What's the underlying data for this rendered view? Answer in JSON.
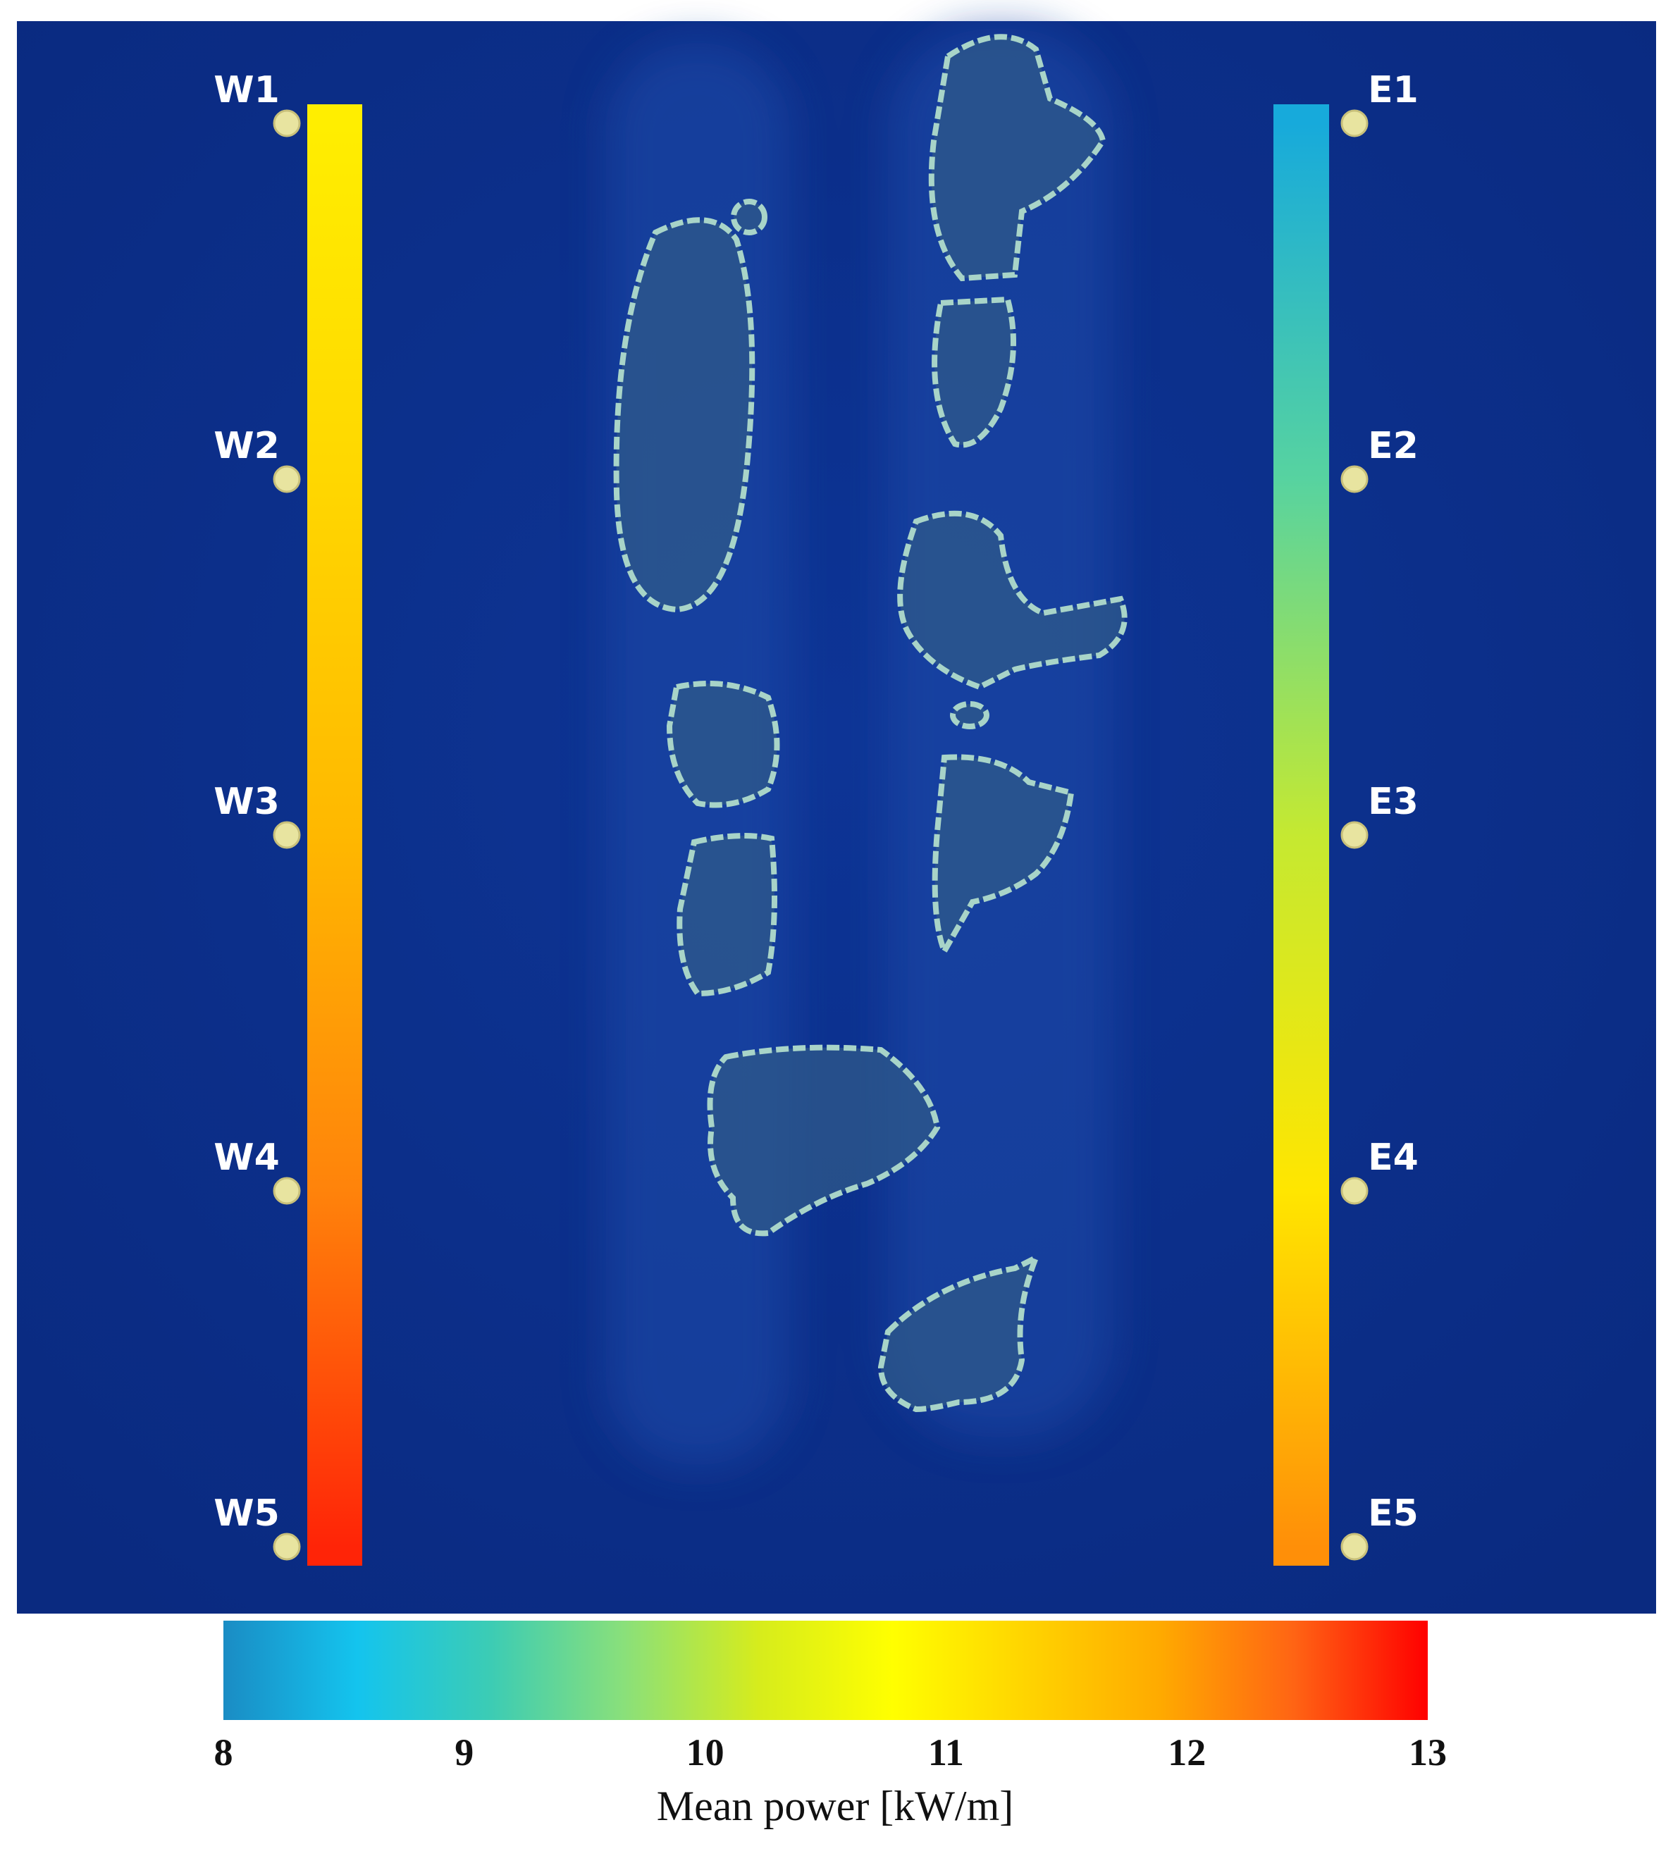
{
  "map": {
    "west_stations": [
      {
        "label": "W1",
        "value": 11.0
      },
      {
        "label": "W2",
        "value": 11.3
      },
      {
        "label": "W3",
        "value": 11.7
      },
      {
        "label": "W4",
        "value": 12.2
      },
      {
        "label": "W5",
        "value": 12.8
      }
    ],
    "east_stations": [
      {
        "label": "E1",
        "value": 8.3
      },
      {
        "label": "E2",
        "value": 9.3
      },
      {
        "label": "E3",
        "value": 10.1
      },
      {
        "label": "E4",
        "value": 11.1
      },
      {
        "label": "E5",
        "value": 12.1
      }
    ]
  },
  "colorbar": {
    "clim": [
      8,
      13
    ],
    "ticks": [
      8,
      9,
      10,
      11,
      12,
      13
    ],
    "colors": [
      "#1a8cc4",
      "#14c4ee",
      "#3cccb4",
      "#8ae07a",
      "#d6ec1c",
      "#ffff00",
      "#ffd400",
      "#ffaa00",
      "#ff6414",
      "#ff0000"
    ],
    "label": "Mean power [kW/m]"
  }
}
